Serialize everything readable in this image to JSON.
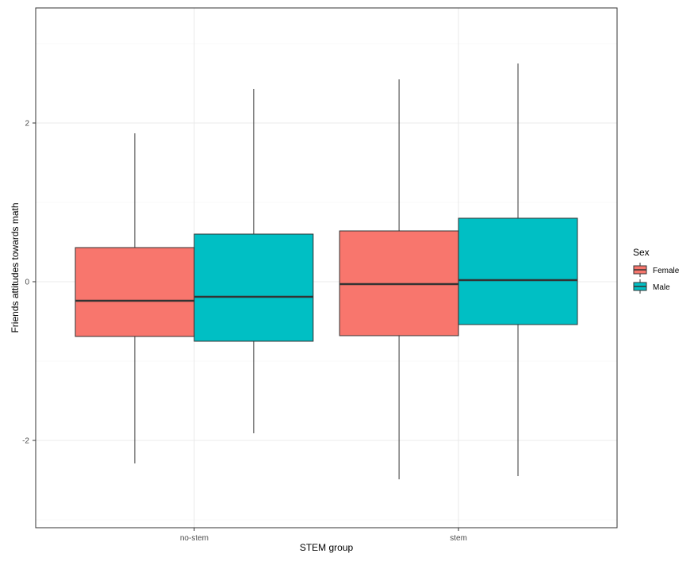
{
  "chart_data": {
    "type": "boxplot",
    "xlabel": "STEM group",
    "ylabel": "Friends attitudes towards math",
    "categories": [
      "no-stem",
      "stem"
    ],
    "ylim": [
      -3.1,
      3.45
    ],
    "yticks": [
      -2,
      0,
      2
    ],
    "grid": true,
    "legend_position": "right",
    "legend_title": "Sex",
    "series": [
      {
        "name": "Female",
        "color": "#F8766D",
        "boxes": [
          {
            "category": "no-stem",
            "whisker_low": -2.29,
            "q1": -0.69,
            "median": -0.24,
            "q3": 0.43,
            "whisker_high": 1.87
          },
          {
            "category": "stem",
            "whisker_low": -2.49,
            "q1": -0.68,
            "median": -0.03,
            "q3": 0.64,
            "whisker_high": 2.55
          }
        ]
      },
      {
        "name": "Male",
        "color": "#00BFC4",
        "boxes": [
          {
            "category": "no-stem",
            "whisker_low": -1.91,
            "q1": -0.75,
            "median": -0.19,
            "q3": 0.6,
            "whisker_high": 2.43
          },
          {
            "category": "stem",
            "whisker_low": -2.45,
            "q1": -0.54,
            "median": 0.02,
            "q3": 0.8,
            "whisker_high": 2.75
          }
        ]
      }
    ]
  }
}
